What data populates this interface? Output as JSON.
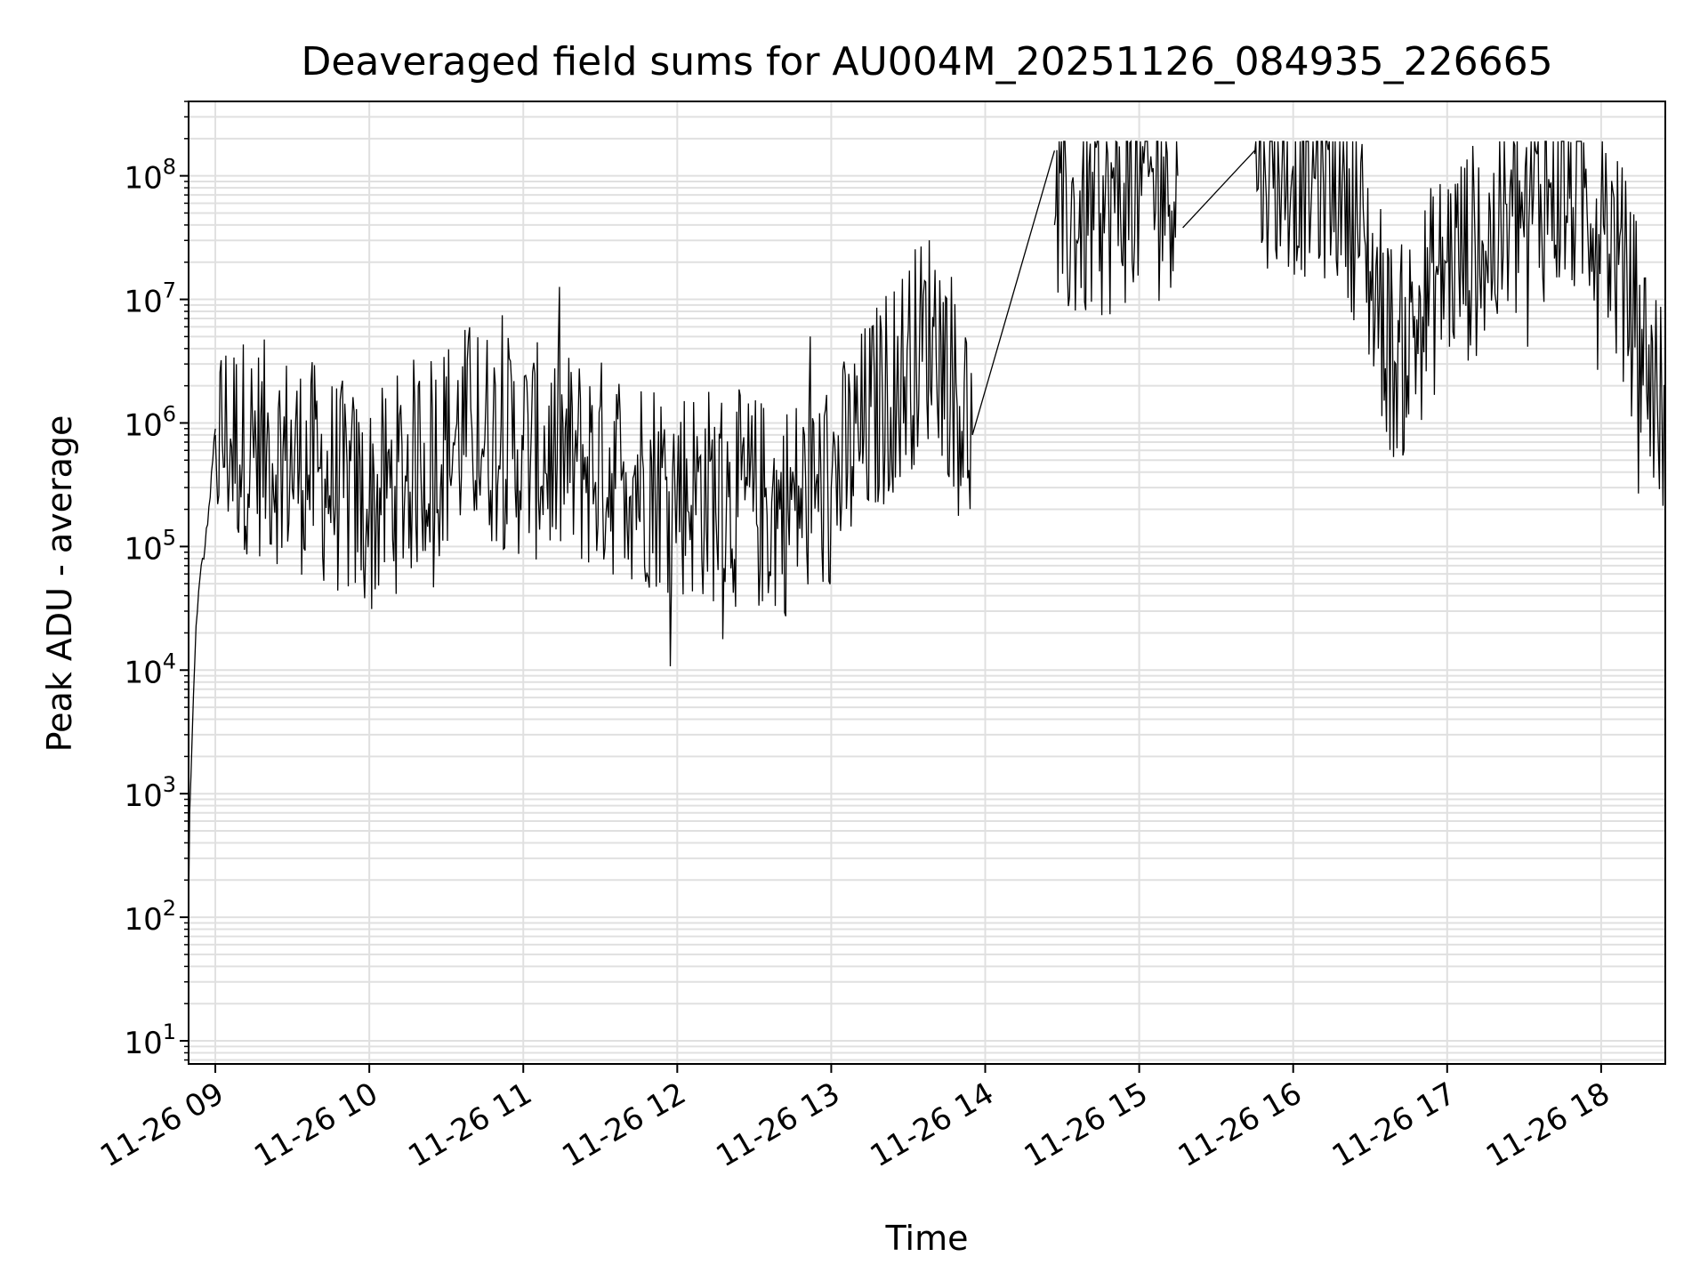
{
  "chart_data": {
    "type": "line",
    "title": "Deaveraged field sums for AU004M_20251126_084935_226665",
    "xlabel": "Time",
    "ylabel": "Peak ADU - average",
    "yscale": "log",
    "ylim": [
      6.5,
      400000000
    ],
    "xlim": [
      "2025-11-26 08:49:35",
      "2025-11-26 18:25:00"
    ],
    "grid": true,
    "line_color": "#000000",
    "grid_color": "#e0e0e0",
    "x_ticks": [
      {
        "label": "11-26 09",
        "time": "2025-11-26 09:00"
      },
      {
        "label": "11-26 10",
        "time": "2025-11-26 10:00"
      },
      {
        "label": "11-26 11",
        "time": "2025-11-26 11:00"
      },
      {
        "label": "11-26 12",
        "time": "2025-11-26 12:00"
      },
      {
        "label": "11-26 13",
        "time": "2025-11-26 13:00"
      },
      {
        "label": "11-26 14",
        "time": "2025-11-26 14:00"
      },
      {
        "label": "11-26 15",
        "time": "2025-11-26 15:00"
      },
      {
        "label": "11-26 16",
        "time": "2025-11-26 16:00"
      },
      {
        "label": "11-26 17",
        "time": "2025-11-26 17:00"
      },
      {
        "label": "11-26 18",
        "time": "2025-11-26 18:00"
      }
    ],
    "y_ticks": [
      {
        "base": "10",
        "exp": "1",
        "value": 10
      },
      {
        "base": "10",
        "exp": "2",
        "value": 100
      },
      {
        "base": "10",
        "exp": "3",
        "value": 1000
      },
      {
        "base": "10",
        "exp": "4",
        "value": 10000
      },
      {
        "base": "10",
        "exp": "5",
        "value": 100000
      },
      {
        "base": "10",
        "exp": "6",
        "value": 1000000
      },
      {
        "base": "10",
        "exp": "7",
        "value": 10000000
      },
      {
        "base": "10",
        "exp": "8",
        "value": 100000000
      }
    ],
    "series": [
      {
        "style": "noisy-line",
        "segments": [
          {
            "x": [
              "2025-11-26 08:49:35",
              "2025-11-26 08:50",
              "2025-11-26 08:51",
              "2025-11-26 08:52",
              "2025-11-26 08:53",
              "2025-11-26 08:54",
              "2025-11-26 08:55",
              "2025-11-26 08:56",
              "2025-11-26 08:57",
              "2025-11-26 08:58",
              "2025-11-26 08:59",
              "2025-11-26 09:00"
            ],
            "y": [
              100,
              700,
              3000,
              12000,
              30000,
              55000,
              80000,
              100000,
              150000,
              250000,
              500000,
              900000
            ]
          },
          {
            "x": [
              "2025-11-26 09:00",
              "2025-11-26 09:20",
              "2025-11-26 09:40",
              "2025-11-26 10:00",
              "2025-11-26 10:20",
              "2025-11-26 10:40",
              "2025-11-26 11:00",
              "2025-11-26 11:20",
              "2025-11-26 11:40",
              "2025-11-26 12:00",
              "2025-11-26 12:20",
              "2025-11-26 12:40",
              "2025-11-26 13:00",
              "2025-11-26 13:20",
              "2025-11-26 13:40",
              "2025-11-26 13:55"
            ],
            "y": [
              800000,
              600000,
              400000,
              200000,
              500000,
              900000,
              600000,
              500000,
              400000,
              300000,
              250000,
              200000,
              300000,
              1500000,
              6000000,
              800000
            ]
          },
          {
            "x": [
              "2025-11-26 13:55",
              "2025-11-26 14:27"
            ],
            "y": [
              800000,
              160000000
            ]
          },
          {
            "x": [
              "2025-11-26 14:27",
              "2025-11-26 14:45",
              "2025-11-26 15:00",
              "2025-11-26 15:15"
            ],
            "y": [
              40000000,
              50000000,
              80000000,
              100000000
            ]
          },
          {
            "x": [
              "2025-11-26 15:17",
              "2025-11-26 15:45"
            ],
            "y": [
              38000000,
              160000000
            ]
          },
          {
            "x": [
              "2025-11-26 15:45",
              "2025-11-26 16:00",
              "2025-11-26 16:20",
              "2025-11-26 16:40",
              "2025-11-26 17:00",
              "2025-11-26 17:20",
              "2025-11-26 17:40",
              "2025-11-26 18:00",
              "2025-11-26 18:25"
            ],
            "y": [
              150000000,
              120000000,
              100000000,
              3000000,
              20000000,
              30000000,
              80000000,
              60000000,
              1000000
            ]
          }
        ]
      }
    ]
  }
}
